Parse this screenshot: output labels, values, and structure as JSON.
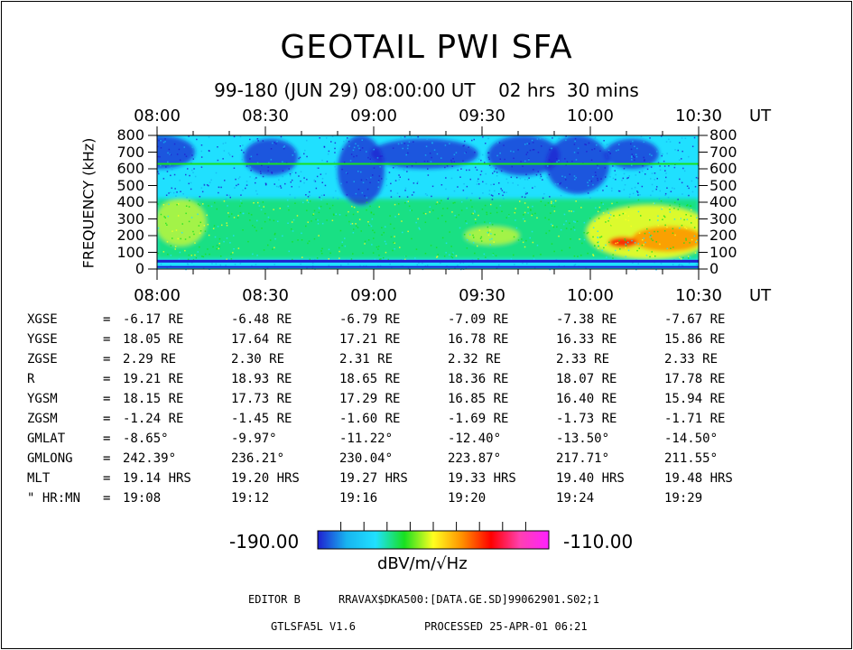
{
  "title": "GEOTAIL PWI SFA",
  "subtitle": "99-180 (JUN 29) 08:00:00 UT    02 hrs  30 mins",
  "chart_data": {
    "type": "heatmap",
    "x_ticks": [
      "08:00",
      "08:30",
      "09:00",
      "09:30",
      "10:00",
      "10:30"
    ],
    "x_unit": "UT",
    "ylabel": "FREQUENCY (kHz)",
    "ylim": [
      0,
      800
    ],
    "y_ticks": [
      "800",
      "700",
      "600",
      "500",
      "400",
      "300",
      "200",
      "100",
      "0"
    ],
    "colorbar": {
      "min": "-190.00",
      "max": "-110.00",
      "unit": "dBV/m/√Hz"
    },
    "colormap": [
      "#1f1fd0",
      "#18b4f0",
      "#20e0ff",
      "#18e020",
      "#ffff20",
      "#ff9000",
      "#ff0000",
      "#ff40b0",
      "#ff20ff"
    ]
  },
  "orbit_table": [
    {
      "label": "XGSE",
      "eq": "=",
      "values": [
        "-6.17 RE",
        "-6.48 RE",
        "-6.79 RE",
        "-7.09 RE",
        "-7.38 RE",
        "-7.67 RE"
      ]
    },
    {
      "label": "YGSE",
      "eq": "=",
      "values": [
        "18.05 RE",
        "17.64 RE",
        "17.21 RE",
        "16.78 RE",
        "16.33 RE",
        "15.86 RE"
      ]
    },
    {
      "label": "ZGSE",
      "eq": "=",
      "values": [
        "2.29 RE",
        "2.30 RE",
        "2.31 RE",
        "2.32 RE",
        "2.33 RE",
        "2.33 RE"
      ]
    },
    {
      "label": "R",
      "eq": "=",
      "values": [
        "19.21 RE",
        "18.93 RE",
        "18.65 RE",
        "18.36 RE",
        "18.07 RE",
        "17.78 RE"
      ]
    },
    {
      "label": "YGSM",
      "eq": "=",
      "values": [
        "18.15 RE",
        "17.73 RE",
        "17.29 RE",
        "16.85 RE",
        "16.40 RE",
        "15.94 RE"
      ]
    },
    {
      "label": "ZGSM",
      "eq": "=",
      "values": [
        "-1.24 RE",
        "-1.45 RE",
        "-1.60 RE",
        "-1.69 RE",
        "-1.73 RE",
        "-1.71 RE"
      ]
    },
    {
      "label": "GMLAT",
      "eq": "=",
      "values": [
        "-8.65°",
        "-9.97°",
        "-11.22°",
        "-12.40°",
        "-13.50°",
        "-14.50°"
      ]
    },
    {
      "label": "GMLONG",
      "eq": "=",
      "values": [
        "242.39°",
        "236.21°",
        "230.04°",
        "223.87°",
        "217.71°",
        "211.55°"
      ]
    },
    {
      "label": "MLT",
      "eq": "=",
      "values": [
        "19.14 HRS",
        "19.20 HRS",
        "19.27 HRS",
        "19.33 HRS",
        "19.40 HRS",
        "19.48 HRS"
      ]
    },
    {
      "label": "\" HR:MN",
      "eq": "=",
      "values": [
        "19:08",
        "19:12",
        "19:16",
        "19:20",
        "19:24",
        "19:29"
      ]
    }
  ],
  "footer": {
    "editor": "EDITOR B",
    "path": "RRAVAX$DKA500:[DATA.GE.SD]99062901.S02;1",
    "program": "GTLSFA5L V1.6",
    "processed": "PROCESSED 25-APR-01  06:21"
  }
}
